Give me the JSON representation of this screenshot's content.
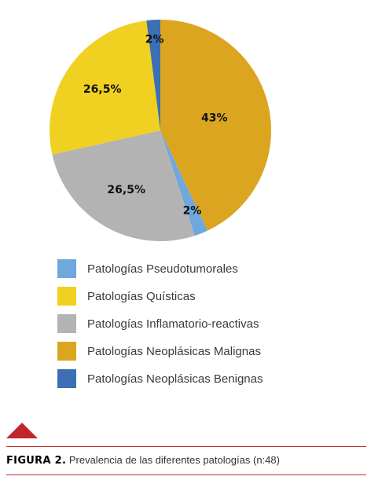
{
  "chart_data": {
    "type": "pie",
    "slices": [
      {
        "name": "Patologías Neoplásicas Malignas",
        "value": 43,
        "label": "43%",
        "color": "#dba520"
      },
      {
        "name": "Patologías Pseudotumorales",
        "value": 2,
        "label": "2%",
        "color": "#6fa8dc"
      },
      {
        "name": "Patologías Inflamatorio-reactivas",
        "value": 26.5,
        "label": "26,5%",
        "color": "#b3b3b3"
      },
      {
        "name": "Patologías Quísticas",
        "value": 26.5,
        "label": "26,5%",
        "color": "#f0d021"
      },
      {
        "name": "Patologías Neoplásicas Benignas",
        "value": 2,
        "label": "2%",
        "color": "#3c6fb4"
      }
    ],
    "legend": [
      {
        "name": "Patologías Pseudotumorales",
        "color": "#6fa8dc"
      },
      {
        "name": "Patologías Quísticas",
        "color": "#f0d021"
      },
      {
        "name": "Patologías Inflamatorio-reactivas",
        "color": "#b3b3b3"
      },
      {
        "name": "Patologías Neoplásicas Malignas",
        "color": "#dba520"
      },
      {
        "name": "Patologías Neoplásicas Benignas",
        "color": "#3c6fb4"
      }
    ],
    "legend_placement": "bottom"
  },
  "caption": {
    "label": "FIGURA 2.",
    "text": " Prevalencia de las diferentes patologías (n:48)"
  },
  "accent_color": "#c3262c"
}
